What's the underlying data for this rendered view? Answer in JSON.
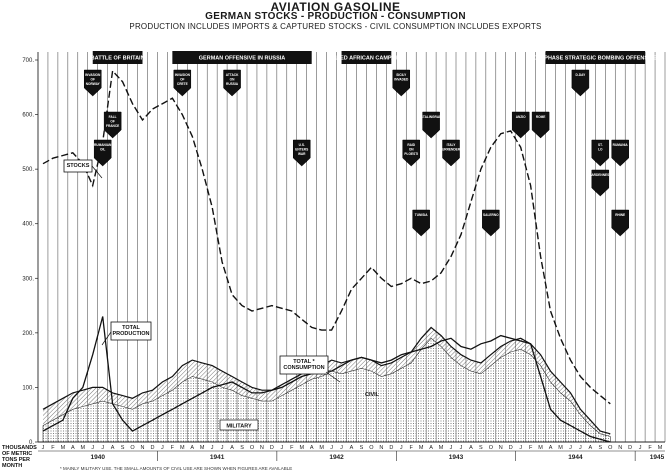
{
  "title": "AVIATION GASOLINE",
  "subtitle": "GERMAN STOCKS - PRODUCTION - CONSUMPTION",
  "note": "PRODUCTION INCLUDES IMPORTS & CAPTURED STOCKS - CIVIL CONSUMPTION INCLUDES EXPORTS",
  "y_axis_label": [
    "THOUSANDS",
    "OF METRIC",
    "TONS PER",
    "MONTH"
  ],
  "footnote": "* MAINLY MILITARY USE. THE SMALL AMOUNTS OF CIVIL USE ARE SHOWN WHEN FIGURES ARE AVAILABLE",
  "campaigns": [
    "BATTLE OF BRITAIN",
    "GERMAN OFFENSIVE IN RUSSIA",
    "ALLIED AFRICAN CAMPAIGN",
    "OIL PHASE STRATEGIC BOMBING OFFENSIVE"
  ],
  "series_labels": {
    "stocks": "STOCKS",
    "production": "TOTAL PRODUCTION",
    "consumption": "TOTAL * CONSUMPTION",
    "civil": "CIVIL",
    "military": "MILITARY"
  },
  "chart_data": {
    "type": "line",
    "title": "AVIATION GASOLINE",
    "xlabel": "",
    "ylabel": "THOUSANDS OF METRIC TONS PER MONTH",
    "ylim": [
      0,
      700
    ],
    "yticks": [
      0,
      100,
      200,
      300,
      400,
      500,
      600,
      700
    ],
    "grid": true,
    "month_labels": [
      "J",
      "F",
      "M",
      "A",
      "M",
      "J",
      "J",
      "A",
      "S",
      "O",
      "N",
      "D",
      "J",
      "F",
      "M",
      "A",
      "M",
      "J",
      "J",
      "A",
      "S",
      "O",
      "N",
      "D",
      "J",
      "F",
      "M",
      "A",
      "M",
      "J",
      "J",
      "A",
      "S",
      "O",
      "N",
      "D",
      "J",
      "F",
      "M",
      "A",
      "M",
      "J",
      "J",
      "A",
      "S",
      "O",
      "N",
      "D",
      "J",
      "F",
      "M",
      "A",
      "M",
      "J",
      "J",
      "A",
      "S",
      "O",
      "N",
      "D",
      "J",
      "F",
      "M"
    ],
    "year_labels": [
      {
        "label": "1940",
        "start_index": 0
      },
      {
        "label": "1941",
        "start_index": 12
      },
      {
        "label": "1942",
        "start_index": 24
      },
      {
        "label": "1943",
        "start_index": 36
      },
      {
        "label": "1944",
        "start_index": 48
      },
      {
        "label": "1945",
        "start_index": 60
      }
    ],
    "series": [
      {
        "name": "STOCKS",
        "style": "dashed",
        "values": [
          510,
          520,
          525,
          530,
          510,
          470,
          550,
          680,
          660,
          620,
          590,
          610,
          620,
          630,
          600,
          560,
          500,
          430,
          330,
          270,
          250,
          240,
          245,
          250,
          245,
          240,
          225,
          210,
          205,
          205,
          240,
          280,
          300,
          320,
          300,
          285,
          290,
          300,
          290,
          295,
          310,
          340,
          380,
          440,
          500,
          540,
          565,
          570,
          540,
          470,
          340,
          240,
          190,
          150,
          120,
          100,
          85,
          70,
          null,
          null,
          null,
          null,
          null
        ]
      },
      {
        "name": "TOTAL PRODUCTION",
        "style": "solid",
        "values": [
          20,
          30,
          40,
          80,
          100,
          160,
          230,
          70,
          40,
          20,
          30,
          40,
          50,
          60,
          70,
          80,
          90,
          100,
          105,
          110,
          100,
          90,
          90,
          95,
          100,
          110,
          120,
          125,
          130,
          130,
          140,
          150,
          155,
          150,
          145,
          150,
          160,
          165,
          170,
          175,
          185,
          190,
          175,
          170,
          180,
          185,
          195,
          190,
          185,
          180,
          120,
          60,
          40,
          30,
          20,
          10,
          5,
          0,
          null,
          null,
          null,
          null,
          null
        ]
      },
      {
        "name": "TOTAL * CONSUMPTION",
        "style": "solid-heavy",
        "values": [
          60,
          70,
          80,
          90,
          95,
          100,
          100,
          90,
          85,
          80,
          90,
          95,
          110,
          120,
          140,
          150,
          145,
          140,
          130,
          120,
          110,
          100,
          95,
          95,
          105,
          115,
          125,
          135,
          140,
          150,
          145,
          150,
          155,
          150,
          140,
          145,
          155,
          165,
          190,
          210,
          195,
          175,
          160,
          150,
          145,
          160,
          175,
          185,
          190,
          180,
          160,
          130,
          110,
          90,
          60,
          40,
          20,
          15,
          null,
          null,
          null,
          null,
          null
        ]
      },
      {
        "name": "MILITARY",
        "style": "area",
        "values": [
          30,
          40,
          50,
          60,
          65,
          70,
          75,
          70,
          65,
          60,
          70,
          75,
          85,
          95,
          110,
          120,
          115,
          110,
          100,
          95,
          85,
          80,
          75,
          75,
          85,
          95,
          105,
          115,
          120,
          130,
          125,
          130,
          135,
          130,
          120,
          125,
          135,
          145,
          170,
          190,
          175,
          155,
          140,
          130,
          125,
          140,
          155,
          165,
          170,
          160,
          140,
          110,
          90,
          75,
          50,
          30,
          15,
          10,
          null,
          null,
          null,
          null,
          null
        ]
      }
    ]
  },
  "event_markers": [
    {
      "month_index": 5,
      "row": 0,
      "dir": "down",
      "label": "INVASION OF NORWAY"
    },
    {
      "month_index": 7,
      "row": 1,
      "dir": "down",
      "label": "FALL OF FRANCE"
    },
    {
      "month_index": 6,
      "row": 2,
      "dir": "down",
      "label": "RUMANIAN OIL"
    },
    {
      "month_index": 14,
      "row": 0,
      "dir": "down",
      "label": "INVASION OF CRETE"
    },
    {
      "month_index": 19,
      "row": 0,
      "dir": "down",
      "label": "ATTACK ON RUSSIA"
    },
    {
      "month_index": 26,
      "row": 2,
      "dir": "down",
      "label": "U.S. ENTERS WAR"
    },
    {
      "month_index": 36,
      "row": 0,
      "dir": "down",
      "label": "SICILY INVADED"
    },
    {
      "month_index": 39,
      "row": 1,
      "dir": "down",
      "label": "STALINGRAD"
    },
    {
      "month_index": 37,
      "row": 2,
      "dir": "down",
      "label": "RAID ON PLOESTI"
    },
    {
      "month_index": 41,
      "row": 2,
      "dir": "down",
      "label": "ITALY SURRENDERS"
    },
    {
      "month_index": 38,
      "row": 4,
      "dir": "down",
      "label": "TUNISIA"
    },
    {
      "month_index": 45,
      "row": 4,
      "dir": "down",
      "label": "SALERNO"
    },
    {
      "month_index": 48,
      "row": 1,
      "dir": "down",
      "label": "ANZIO"
    },
    {
      "month_index": 50,
      "row": 1,
      "dir": "down",
      "label": "ROME"
    },
    {
      "month_index": 54,
      "row": 0,
      "dir": "down",
      "label": "D-DAY"
    },
    {
      "month_index": 56,
      "row": 2,
      "dir": "down",
      "label": "ST. LO"
    },
    {
      "month_index": 58,
      "row": 2,
      "dir": "down",
      "label": "RUMANIA"
    },
    {
      "month_index": 56,
      "row": 3,
      "dir": "down",
      "label": "ARDENNES"
    },
    {
      "month_index": 58,
      "row": 4,
      "dir": "down",
      "label": "RHINE"
    }
  ],
  "colors": {
    "ink": "#1a1a1a",
    "grid": "#3a3a3a",
    "marker": "#111111",
    "hatch": "#555555"
  }
}
